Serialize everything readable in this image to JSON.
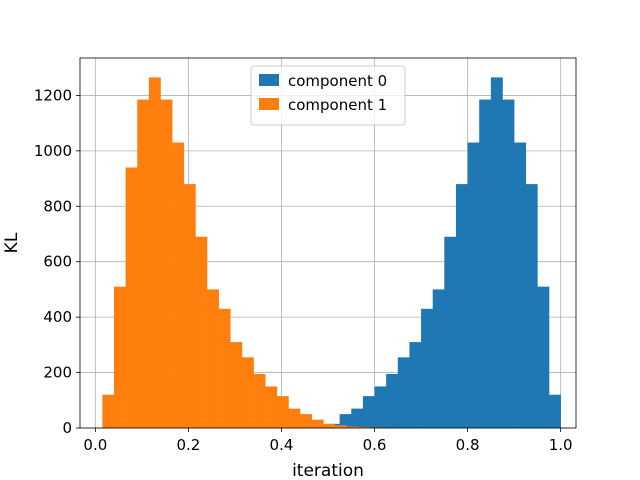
{
  "chart_data": {
    "type": "bar",
    "subtype": "histogram",
    "xlabel": "iteration",
    "ylabel": "KL",
    "xlim": [
      -0.033,
      1.033
    ],
    "ylim": [
      0,
      1335
    ],
    "xticks": [
      0.0,
      0.2,
      0.4,
      0.6,
      0.8,
      1.0
    ],
    "xtick_labels": [
      "0.0",
      "0.2",
      "0.4",
      "0.6",
      "0.8",
      "1.0"
    ],
    "yticks": [
      0,
      200,
      400,
      600,
      800,
      1000,
      1200
    ],
    "ytick_labels": [
      "0",
      "200",
      "400",
      "600",
      "800",
      "1000",
      "1200"
    ],
    "grid": true,
    "legend_position": "upper center",
    "series": [
      {
        "name": "component 0",
        "color": "#1f77b4",
        "bin_edges": [
          0.475,
          0.5,
          0.525,
          0.55,
          0.575,
          0.6,
          0.625,
          0.65,
          0.675,
          0.7,
          0.725,
          0.75,
          0.775,
          0.8,
          0.825,
          0.85,
          0.875,
          0.9,
          0.925,
          0.95,
          0.975,
          1.0
        ],
        "values": [
          5,
          15,
          50,
          70,
          115,
          150,
          195,
          255,
          310,
          430,
          500,
          690,
          880,
          1030,
          1185,
          1265,
          1185,
          1030,
          880,
          510,
          120
        ]
      },
      {
        "name": "component 1",
        "color": "#ff7f0e",
        "bin_edges": [
          0.015,
          0.04,
          0.065,
          0.09,
          0.115,
          0.14,
          0.165,
          0.19,
          0.215,
          0.24,
          0.265,
          0.29,
          0.315,
          0.34,
          0.365,
          0.39,
          0.415,
          0.44,
          0.465,
          0.49,
          0.515,
          0.54,
          0.565,
          0.59,
          0.615,
          0.64
        ],
        "values": [
          120,
          510,
          940,
          1185,
          1265,
          1185,
          1030,
          880,
          690,
          500,
          430,
          310,
          255,
          195,
          150,
          115,
          70,
          50,
          30,
          15,
          10,
          5,
          3,
          2,
          1
        ]
      }
    ]
  }
}
